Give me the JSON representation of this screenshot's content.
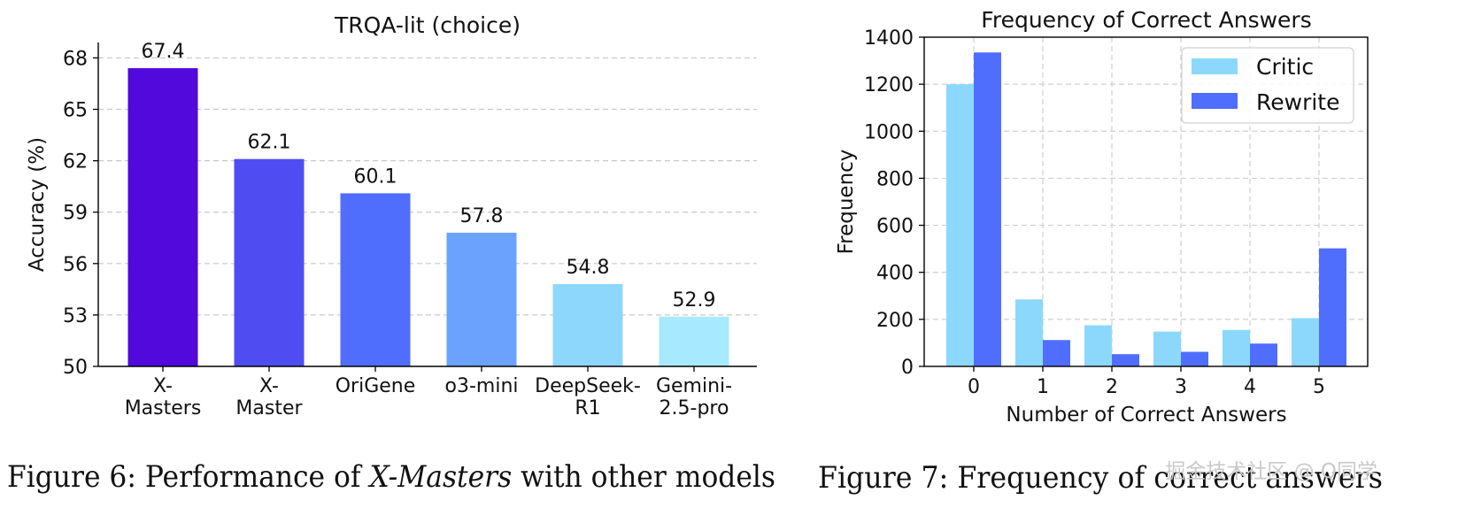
{
  "chart_data": [
    {
      "type": "bar",
      "title": "TRQA-lit (choice)",
      "xlabel": "",
      "ylabel": "Accuracy (%)",
      "ylim": [
        50,
        68.9
      ],
      "yticks": [
        "50",
        "53",
        "56",
        "59",
        "62",
        "65",
        "68"
      ],
      "categories": [
        [
          "X-",
          "Masters"
        ],
        [
          "X-",
          "Master"
        ],
        [
          "OriGene"
        ],
        [
          "o3-mini"
        ],
        [
          "DeepSeek-",
          "R1"
        ],
        [
          "Gemini-",
          "2.5-pro"
        ]
      ],
      "values": [
        67.4,
        62.1,
        60.1,
        57.8,
        54.8,
        52.9
      ],
      "value_labels": [
        "67.4",
        "62.1",
        "60.1",
        "57.8",
        "54.8",
        "52.9"
      ],
      "colors": [
        "#5209dc",
        "#4f4df2",
        "#4f6efe",
        "#6aa2fe",
        "#8dd7fd",
        "#a7e9fe"
      ],
      "grid": "y-dashed",
      "caption": {
        "prefix": "Figure 6: Performance of ",
        "emph": "X-Masters",
        "suffix": " with other models"
      }
    },
    {
      "type": "bar",
      "title": "Frequency of Correct Answers",
      "xlabel": "Number of Correct Answers",
      "ylabel": "Frequency",
      "ylim": [
        0,
        1400
      ],
      "yticks": [
        "0",
        "200",
        "400",
        "600",
        "800",
        "1000",
        "1200",
        "1400"
      ],
      "categories": [
        "0",
        "1",
        "2",
        "3",
        "4",
        "5"
      ],
      "series": [
        {
          "name": "Critic",
          "color": "#8cd8fd",
          "values": [
            1200,
            285,
            175,
            148,
            155,
            205
          ]
        },
        {
          "name": "Rewrite",
          "color": "#4f6efe",
          "values": [
            1335,
            112,
            52,
            62,
            97,
            502
          ]
        }
      ],
      "grid": "both-dashed",
      "legend": "top-right",
      "caption": "Figure 7: Frequency of correct answers"
    }
  ],
  "watermark": "掘金技术社区 @ Q同学"
}
